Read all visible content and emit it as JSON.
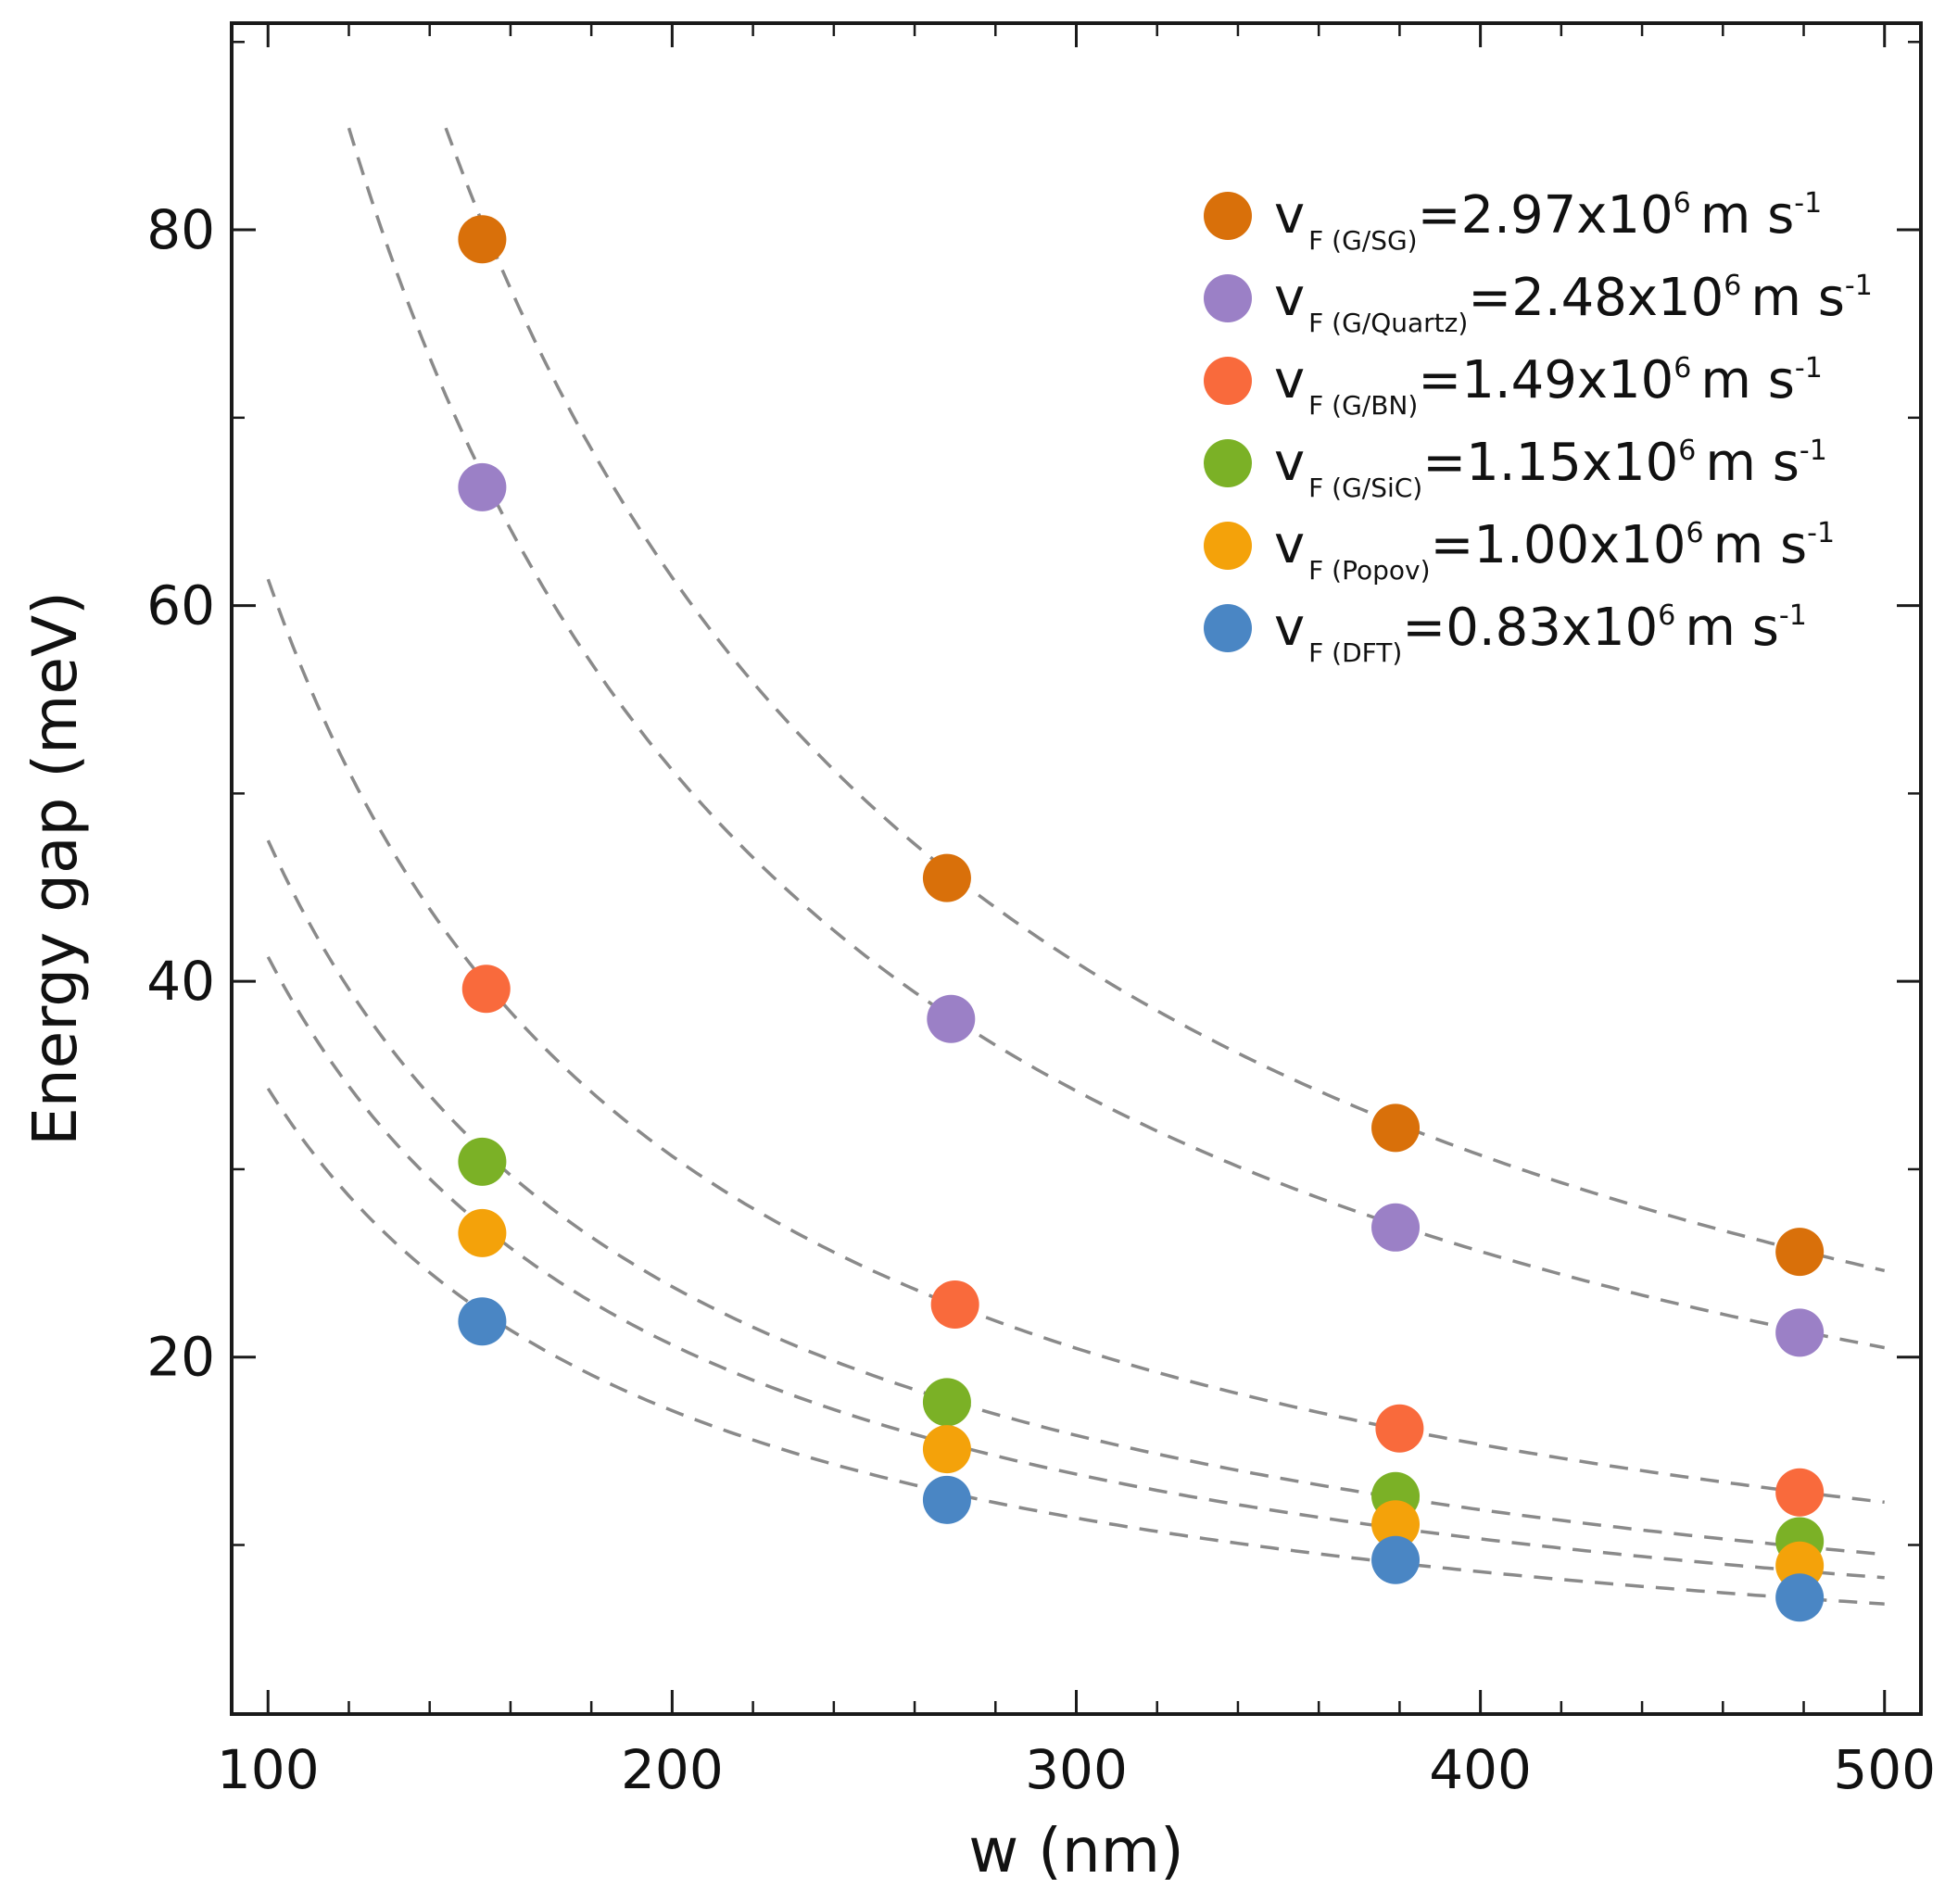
{
  "chart_data": {
    "type": "scatter",
    "xlabel": "w (nm)",
    "ylabel": "Energy gap (meV)",
    "xlim": [
      91,
      509
    ],
    "ylim": [
      1,
      91
    ],
    "xticks": [
      100,
      200,
      300,
      400,
      500
    ],
    "xtick_labels": [
      "100",
      "200",
      "300",
      "400",
      "500"
    ],
    "yticks": [
      20,
      40,
      60,
      80
    ],
    "ytick_labels": [
      "20",
      "40",
      "60",
      "80"
    ],
    "grid": false,
    "legend_position": "top-right",
    "fit_line_color": "#8a8a8a",
    "series": [
      {
        "name": "G/SG",
        "label_prefix": "v",
        "label_sub": "F (G/SG)",
        "label_value": "=2.97x10",
        "label_exp": "6",
        "label_unit": "m s",
        "label_unit_exp": "-1",
        "color": "#d9700a",
        "x": [
          153,
          268,
          379,
          479
        ],
        "y": [
          79.5,
          45.5,
          32.2,
          25.6
        ],
        "fit_k": 12300,
        "fit_range": [
          120,
          500
        ]
      },
      {
        "name": "G/Quartz",
        "label_prefix": "v",
        "label_sub": "F (G/Quartz)",
        "label_value": "=2.48x10",
        "label_exp": "6",
        "label_unit": "m s",
        "label_unit_exp": "-1",
        "color": "#9b80c6",
        "x": [
          153,
          269,
          379,
          479
        ],
        "y": [
          66.3,
          38.0,
          26.9,
          21.3
        ],
        "fit_k": 10250,
        "fit_range": [
          120,
          500
        ]
      },
      {
        "name": "G/BN",
        "label_prefix": "v",
        "label_sub": "F (G/BN)",
        "label_value": "=1.49x10",
        "label_exp": "6",
        "label_unit": "m s",
        "label_unit_exp": "-1",
        "color": "#f96a3c",
        "x": [
          154,
          270,
          380,
          479
        ],
        "y": [
          39.6,
          22.8,
          16.2,
          12.8
        ],
        "fit_k": 6140,
        "fit_range": [
          100,
          500
        ]
      },
      {
        "name": "G/SiC",
        "label_prefix": "v",
        "label_sub": "F (G/SiC)",
        "label_value": "=1.15x10",
        "label_exp": "6",
        "label_unit": "m s",
        "label_unit_exp": "-1",
        "color": "#7bb126",
        "x": [
          153,
          268,
          379,
          479
        ],
        "y": [
          30.4,
          17.6,
          12.6,
          10.2
        ],
        "fit_k": 4750,
        "fit_range": [
          100,
          500
        ]
      },
      {
        "name": "Popov",
        "label_prefix": "v",
        "label_sub": "F (Popov)",
        "label_value": "=1.00x10",
        "label_exp": "6",
        "label_unit": "m s",
        "label_unit_exp": "-1",
        "color": "#f4a20a",
        "x": [
          153,
          268,
          379,
          479
        ],
        "y": [
          26.6,
          15.1,
          11.1,
          8.9
        ],
        "fit_k": 4130,
        "fit_range": [
          100,
          500
        ]
      },
      {
        "name": "DFT",
        "label_prefix": "v",
        "label_sub": "F (DFT)",
        "label_value": "=0.83x10",
        "label_exp": "6",
        "label_unit": "m s",
        "label_unit_exp": "-1",
        "color": "#4a86c4",
        "x": [
          153,
          268,
          379,
          479
        ],
        "y": [
          21.9,
          12.4,
          9.2,
          7.2
        ],
        "fit_k": 3430,
        "fit_range": [
          100,
          500
        ]
      }
    ]
  }
}
